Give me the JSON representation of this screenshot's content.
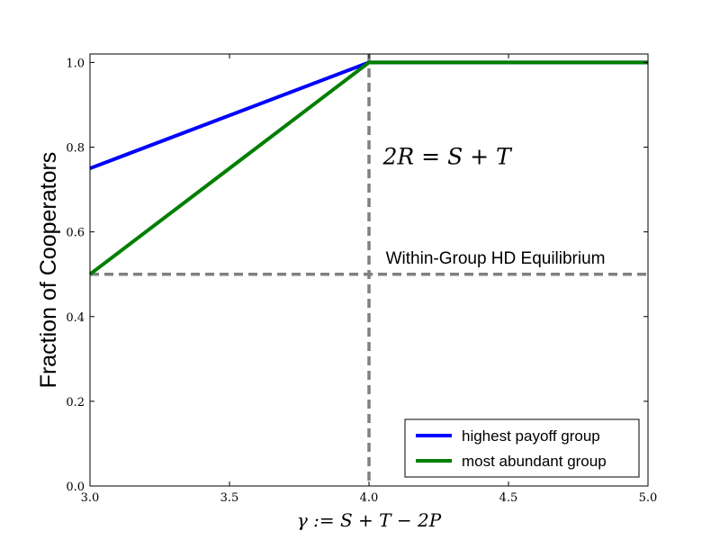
{
  "chart_data": {
    "type": "line",
    "xlabel": "γ := S + T − 2P",
    "ylabel": "Fraction of Cooperators",
    "xlim": [
      3.0,
      5.0
    ],
    "ylim": [
      0.0,
      1.02
    ],
    "xticks": [
      3.0,
      3.5,
      4.0,
      4.5,
      5.0
    ],
    "xtick_labels": [
      "3.0",
      "3.5",
      "4.0",
      "4.5",
      "5.0"
    ],
    "yticks": [
      0.0,
      0.2,
      0.4,
      0.6,
      0.8,
      1.0
    ],
    "ytick_labels": [
      "0.0",
      "0.2",
      "0.4",
      "0.6",
      "0.8",
      "1.0"
    ],
    "grid": false,
    "legend_position": "lower-right",
    "series": [
      {
        "name": "highest payoff group",
        "color": "#0000ff",
        "x": [
          3.0,
          4.0,
          5.0
        ],
        "y": [
          0.75,
          1.0,
          1.0
        ]
      },
      {
        "name": "most abundant group",
        "color": "#007f00",
        "x": [
          3.0,
          4.0,
          5.0
        ],
        "y": [
          0.5,
          1.0,
          1.0
        ]
      }
    ],
    "reference_lines": [
      {
        "orientation": "vertical",
        "value": 4.0,
        "color": "#808080",
        "style": "dashed"
      },
      {
        "orientation": "horizontal",
        "value": 0.5,
        "color": "#808080",
        "style": "dashed"
      }
    ],
    "annotations": [
      {
        "text": "2R = S + T",
        "x": 4.05,
        "y": 0.76
      },
      {
        "text": "Within-Group HD Equilibrium",
        "x": 4.06,
        "y": 0.525
      }
    ]
  }
}
